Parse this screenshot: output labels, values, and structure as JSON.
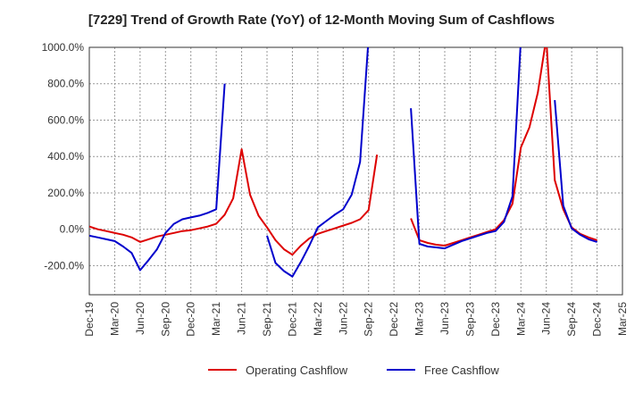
{
  "chart_data": {
    "type": "line",
    "title": "[7229]  Trend of Growth Rate (YoY) of 12-Month Moving Sum of Cashflows",
    "xlabel": "",
    "ylabel": "",
    "ylim": [
      -360,
      1000
    ],
    "yticks": [
      -200,
      0,
      200,
      400,
      600,
      800,
      1000
    ],
    "ytick_labels": [
      "-200.0%",
      "0.0%",
      "200.0%",
      "400.0%",
      "600.0%",
      "800.0%",
      "1000.0%"
    ],
    "x_start": "Dec-19",
    "xtick_labels": [
      "Dec-19",
      "Mar-20",
      "Jun-20",
      "Sep-20",
      "Dec-20",
      "Mar-21",
      "Jun-21",
      "Sep-21",
      "Dec-21",
      "Mar-22",
      "Jun-22",
      "Sep-22",
      "Dec-22",
      "Mar-23",
      "Jun-23",
      "Sep-23",
      "Dec-23",
      "Mar-24",
      "Jun-24",
      "Sep-24",
      "Dec-24",
      "Mar-25"
    ],
    "grid": true,
    "grid_style": "dashed",
    "legend_position": "bottom",
    "series": [
      {
        "name": "Operating Cashflow",
        "color": "#dd0000",
        "points": [
          [
            "Dec-19",
            15
          ],
          [
            "Jan-20",
            0
          ],
          [
            "Feb-20",
            -10
          ],
          [
            "Mar-20",
            -20
          ],
          [
            "Apr-20",
            -30
          ],
          [
            "May-20",
            -45
          ],
          [
            "Jun-20",
            -70
          ],
          [
            "Jul-20",
            -55
          ],
          [
            "Aug-20",
            -40
          ],
          [
            "Sep-20",
            -30
          ],
          [
            "Oct-20",
            -20
          ],
          [
            "Nov-20",
            -10
          ],
          [
            "Dec-20",
            -5
          ],
          [
            "Jan-21",
            5
          ],
          [
            "Feb-21",
            15
          ],
          [
            "Mar-21",
            30
          ],
          [
            "Apr-21",
            80
          ],
          [
            "May-21",
            170
          ],
          [
            "Jun-21",
            440
          ],
          [
            "Jul-21",
            190
          ],
          [
            "Aug-21",
            75
          ],
          [
            "Sep-21",
            10
          ],
          [
            "Oct-21",
            -60
          ],
          [
            "Nov-21",
            -110
          ],
          [
            "Dec-21",
            -140
          ],
          [
            "Jan-22",
            -90
          ],
          [
            "Feb-22",
            -50
          ],
          [
            "Mar-22",
            -25
          ],
          [
            "Apr-22",
            -10
          ],
          [
            "May-22",
            5
          ],
          [
            "Jun-22",
            20
          ],
          [
            "Jul-22",
            35
          ],
          [
            "Aug-22",
            55
          ],
          [
            "Sep-22",
            105
          ],
          [
            "Oct-22",
            410
          ],
          [
            "Feb-23",
            60
          ],
          [
            "Mar-23",
            -60
          ],
          [
            "Apr-23",
            -75
          ],
          [
            "May-23",
            -85
          ],
          [
            "Jun-23",
            -90
          ],
          [
            "Jul-23",
            -75
          ],
          [
            "Aug-23",
            -60
          ],
          [
            "Sep-23",
            -45
          ],
          [
            "Oct-23",
            -30
          ],
          [
            "Nov-23",
            -15
          ],
          [
            "Dec-23",
            0
          ],
          [
            "Jan-24",
            50
          ],
          [
            "Feb-24",
            140
          ],
          [
            "Mar-24",
            450
          ],
          [
            "Apr-24",
            560
          ],
          [
            "May-24",
            750
          ],
          [
            "Jun-24",
            1050
          ],
          [
            "Jul-24",
            270
          ],
          [
            "Aug-24",
            110
          ],
          [
            "Sep-24",
            10
          ],
          [
            "Oct-24",
            -25
          ],
          [
            "Nov-24",
            -45
          ],
          [
            "Dec-24",
            -60
          ]
        ]
      },
      {
        "name": "Free Cashflow",
        "color": "#0000cc",
        "points": [
          [
            "Dec-19",
            -35
          ],
          [
            "Jan-20",
            -45
          ],
          [
            "Feb-20",
            -55
          ],
          [
            "Mar-20",
            -65
          ],
          [
            "Apr-20",
            -95
          ],
          [
            "May-20",
            -130
          ],
          [
            "Jun-20",
            -225
          ],
          [
            "Jul-20",
            -170
          ],
          [
            "Aug-20",
            -110
          ],
          [
            "Sep-20",
            -20
          ],
          [
            "Oct-20",
            30
          ],
          [
            "Nov-20",
            55
          ],
          [
            "Dec-20",
            65
          ],
          [
            "Jan-21",
            75
          ],
          [
            "Feb-21",
            90
          ],
          [
            "Mar-21",
            110
          ],
          [
            "Apr-21",
            800
          ],
          [
            "Sep-21",
            -35
          ],
          [
            "Oct-21",
            -185
          ],
          [
            "Nov-21",
            -230
          ],
          [
            "Dec-21",
            -260
          ],
          [
            "Jan-22",
            -180
          ],
          [
            "Feb-22",
            -90
          ],
          [
            "Mar-22",
            10
          ],
          [
            "Apr-22",
            45
          ],
          [
            "May-22",
            80
          ],
          [
            "Jun-22",
            110
          ],
          [
            "Jul-22",
            190
          ],
          [
            "Aug-22",
            370
          ],
          [
            "Sep-22",
            1050
          ],
          [
            "Feb-23",
            665
          ],
          [
            "Mar-23",
            -80
          ],
          [
            "Apr-23",
            -95
          ],
          [
            "May-23",
            -100
          ],
          [
            "Jun-23",
            -105
          ],
          [
            "Jul-23",
            -85
          ],
          [
            "Aug-23",
            -65
          ],
          [
            "Sep-23",
            -50
          ],
          [
            "Oct-23",
            -35
          ],
          [
            "Nov-23",
            -20
          ],
          [
            "Dec-23",
            -10
          ],
          [
            "Jan-24",
            40
          ],
          [
            "Feb-24",
            180
          ],
          [
            "Mar-24",
            1050
          ],
          [
            "Jul-24",
            710
          ],
          [
            "Aug-24",
            130
          ],
          [
            "Sep-24",
            5
          ],
          [
            "Oct-24",
            -30
          ],
          [
            "Nov-24",
            -55
          ],
          [
            "Dec-24",
            -70
          ]
        ]
      }
    ]
  }
}
